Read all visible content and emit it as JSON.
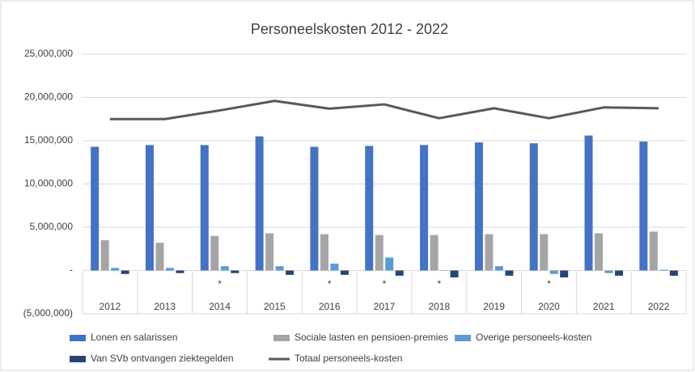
{
  "chart_data": {
    "type": "bar",
    "title": "Personeelskosten  2012 - 2022",
    "categories": [
      "2012",
      "2013",
      "2014",
      "2015",
      "2016",
      "2017",
      "2018",
      "2019",
      "2020",
      "2021",
      "2022"
    ],
    "notes": [
      null,
      null,
      "*",
      null,
      "*",
      "*",
      "*",
      null,
      "*",
      null,
      null
    ],
    "series": [
      {
        "name": "Lonen en salarissen",
        "color": "#4472c4",
        "type": "bar",
        "values": [
          14300000,
          14500000,
          14500000,
          15500000,
          14300000,
          14400000,
          14500000,
          14800000,
          14700000,
          15600000,
          14900000
        ]
      },
      {
        "name": "Sociale lasten en pensioen-premies",
        "color": "#a5a5a5",
        "type": "bar",
        "values": [
          3500000,
          3200000,
          4000000,
          4300000,
          4200000,
          4100000,
          4100000,
          4200000,
          4200000,
          4300000,
          4500000
        ]
      },
      {
        "name": "Overige personeels-kosten",
        "color": "#5b9bd5",
        "type": "bar",
        "values": [
          300000,
          300000,
          500000,
          500000,
          800000,
          1500000,
          50000,
          500000,
          -400000,
          -300000,
          100000
        ]
      },
      {
        "name": "Van SVb ontvangen ziektegelden",
        "color": "#264478",
        "type": "bar",
        "values": [
          -400000,
          -300000,
          -300000,
          -500000,
          -500000,
          -600000,
          -800000,
          -600000,
          -800000,
          -600000,
          -600000
        ]
      },
      {
        "name": "Totaal personeels-kosten",
        "color": "#595959",
        "type": "line",
        "values": [
          17500000,
          17500000,
          18500000,
          19600000,
          18700000,
          19200000,
          17600000,
          18750000,
          17600000,
          18850000,
          18750000
        ]
      }
    ],
    "ylim": [
      -5000000,
      25000000
    ],
    "yticks": [
      {
        "value": -5000000,
        "label": "(5,000,000)"
      },
      {
        "value": 0,
        "label": "-"
      },
      {
        "value": 5000000,
        "label": "5,000,000"
      },
      {
        "value": 10000000,
        "label": "10,000,000"
      },
      {
        "value": 15000000,
        "label": "15,000,000"
      },
      {
        "value": 20000000,
        "label": "20,000,000"
      },
      {
        "value": 25000000,
        "label": "25,000,000"
      }
    ],
    "grid": true,
    "legend": "bottom"
  }
}
